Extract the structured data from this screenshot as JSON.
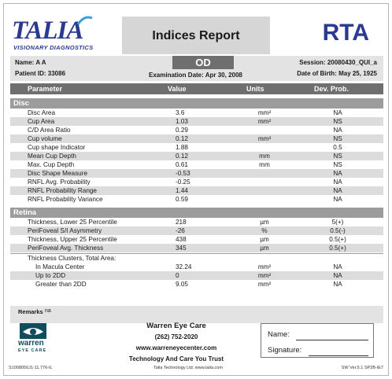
{
  "logo": {
    "word": "TALIA",
    "tagline": "VISIONARY DIAGNOSTICS"
  },
  "header": {
    "title": "Indices Report",
    "brand": "RTA"
  },
  "info": {
    "name": "Name: A A",
    "patient_id": "Patient ID: 33086",
    "eye": "OD",
    "exam_date": "Examination Date: Apr 30, 2008",
    "session": "Session: 20080430_QUI_a",
    "dob": "Date of Birth: May 25, 1925"
  },
  "table": {
    "headers": {
      "parameter": "Parameter",
      "value": "Value",
      "units": "Units",
      "dev": "Dev. Prob."
    },
    "disc": {
      "label": "Disc",
      "rows": [
        {
          "p": "Disc Area",
          "v": "3.6",
          "u": "mm²",
          "d": "NA"
        },
        {
          "p": "Cup Area",
          "v": "1.03",
          "u": "mm²",
          "d": "NS"
        },
        {
          "p": "C/D Area Ratio",
          "v": "0.29",
          "u": "",
          "d": "NA"
        },
        {
          "p": "Cup volume",
          "v": "0.12",
          "u": "mm³",
          "d": "NS"
        },
        {
          "p": "Cup shape Indicator",
          "v": "1.88",
          "u": "",
          "d": "0.5"
        },
        {
          "p": "Mean Cup Depth",
          "v": "0.12",
          "u": "mm",
          "d": "NS"
        },
        {
          "p": "Max. Cup Depth",
          "v": "0.61",
          "u": "mm",
          "d": "NS"
        },
        {
          "p": "Disc Shape Measure",
          "v": "-0.53",
          "u": "",
          "d": "NA"
        },
        {
          "p": "RNFL Avg. Probability",
          "v": "-0.25",
          "u": "",
          "d": "NA"
        },
        {
          "p": "RNFL Probability Range",
          "v": "1.44",
          "u": "",
          "d": "NA"
        },
        {
          "p": "RNFL Probability Variance",
          "v": "0.59",
          "u": "",
          "d": "NA"
        }
      ]
    },
    "retina": {
      "label": "Retina",
      "rows": [
        {
          "p": "Thickness, Lower 25 Percentile",
          "v": "218",
          "u": "µm",
          "d": "5(+)"
        },
        {
          "p": "PeriFoveal S/I Asymmetry",
          "v": "-26",
          "u": "%",
          "d": "0.5(-)"
        },
        {
          "p": "Thickness, Upper 25 Percentile",
          "v": "438",
          "u": "µm",
          "d": "0.5(+)"
        },
        {
          "p": "PeriFoveal Avg. Thickness",
          "v": "345",
          "u": "µm",
          "d": "0.5(+)"
        }
      ],
      "clusters_label": "Thickness Clusters, Total Area:",
      "clusters": [
        {
          "p": "In Macula Center",
          "v": "32.24",
          "u": "mm²",
          "d": "NA"
        },
        {
          "p": "Up to 2DD",
          "v": "0",
          "u": "mm²",
          "d": "NA"
        },
        {
          "p": "Greater than 2DD",
          "v": "9.05",
          "u": "mm²",
          "d": "NA"
        }
      ]
    }
  },
  "remarks": {
    "label": "Remarks",
    "value": "na"
  },
  "footer": {
    "logo_name": "warren",
    "logo_sub": "EYE CARE",
    "clinic": "Warren Eye Care",
    "phone": "(262) 752-2020",
    "website": "www.warreneyecenter.com",
    "slogan": "Technology And Care You Trust",
    "name_label": "Name:",
    "signature_label": "Signature:",
    "doc_id": "S1008050J1-11.776-IL",
    "company": "Talia Technology Ltd. www.talia.com",
    "version": "SW Ver.5.1 SP2B-IE7"
  },
  "colors": {
    "brand_blue": "#2b3990",
    "header_gray": "#6f6f6f",
    "section_gray": "#9c9c9c",
    "row_shade": "#dcdcdc"
  }
}
